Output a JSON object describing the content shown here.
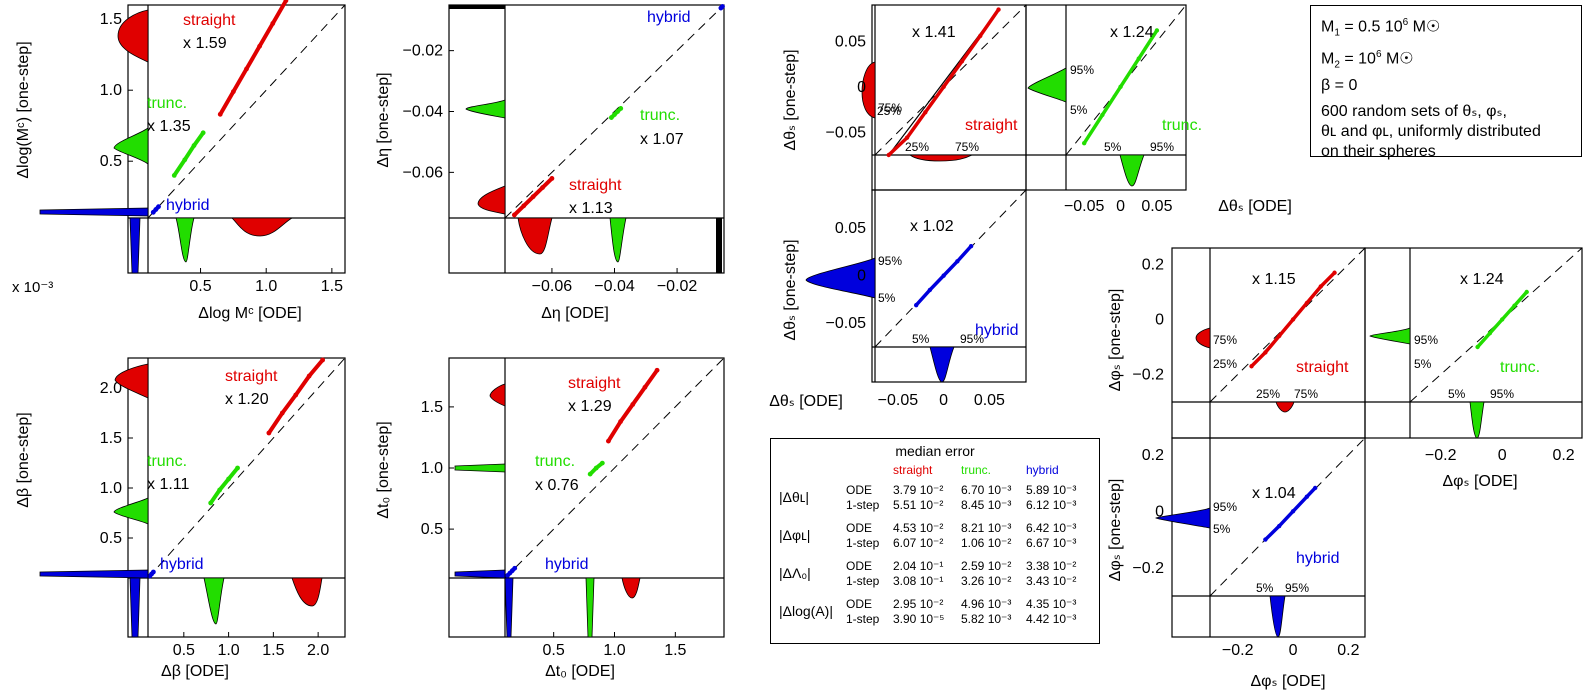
{
  "chart_data": [
    {
      "type": "scatter",
      "id": "logMc",
      "xlabel": "Δlog Mᶜ [ODE]",
      "ylabel": "Δlog(Mᶜ) [one-step]",
      "x_scale_note": "x 10⁻³",
      "xlim": [
        0.1,
        1.6
      ],
      "ylim": [
        0.1,
        1.6
      ],
      "xticks": [
        "0.5",
        "1.0",
        "1.5"
      ],
      "yticks": [
        "0.5",
        "1.0",
        "1.5"
      ],
      "series": [
        {
          "name": "straight",
          "color": "#e00000",
          "factor": "x 1.59",
          "x": [
            0.65,
            0.75,
            0.85,
            0.95,
            1.05,
            1.15
          ],
          "y": [
            0.83,
            0.99,
            1.15,
            1.31,
            1.47,
            1.63
          ]
        },
        {
          "name": "trunc.",
          "color": "#22dd00",
          "factor": "x 1.35",
          "x": [
            0.3,
            0.38,
            0.45,
            0.52
          ],
          "y": [
            0.4,
            0.51,
            0.61,
            0.7
          ]
        },
        {
          "name": "hybrid",
          "color": "#0000dd",
          "factor": "",
          "x": [
            0.14,
            0.16,
            0.18
          ],
          "y": [
            0.14,
            0.16,
            0.18
          ]
        }
      ]
    },
    {
      "type": "scatter",
      "id": "eta",
      "xlabel": "Δη [ODE]",
      "ylabel": "Δη [one-step]",
      "xlim": [
        -0.075,
        -0.005
      ],
      "ylim": [
        -0.075,
        -0.005
      ],
      "xticks": [
        "-0.06",
        "-0.04",
        "-0.02"
      ],
      "yticks": [
        "-0.06",
        "-0.04",
        "-0.02"
      ],
      "series": [
        {
          "name": "straight",
          "color": "#e00000",
          "factor": "x 1.13",
          "x": [
            -0.072,
            -0.069,
            -0.066,
            -0.063,
            -0.06
          ],
          "y": [
            -0.074,
            -0.071,
            -0.068,
            -0.065,
            -0.062
          ]
        },
        {
          "name": "trunc.",
          "color": "#22dd00",
          "factor": "x 1.07",
          "x": [
            -0.041,
            -0.04,
            -0.039,
            -0.038
          ],
          "y": [
            -0.042,
            -0.041,
            -0.04,
            -0.039
          ]
        },
        {
          "name": "hybrid",
          "color": "#0000dd",
          "factor": "",
          "x": [
            -0.006,
            -0.0055
          ],
          "y": [
            -0.006,
            -0.0055
          ]
        }
      ]
    },
    {
      "type": "scatter",
      "id": "beta",
      "xlabel": "Δβ [ODE]",
      "ylabel": "Δβ [one-step]",
      "xlim": [
        0.1,
        2.3
      ],
      "ylim": [
        0.1,
        2.3
      ],
      "xticks": [
        "0.5",
        "1.0",
        "1.5",
        "2.0"
      ],
      "yticks": [
        "0.5",
        "1.0",
        "1.5",
        "2.0"
      ],
      "series": [
        {
          "name": "straight",
          "color": "#e00000",
          "factor": "x 1.20",
          "x": [
            1.45,
            1.6,
            1.75,
            1.9,
            2.05
          ],
          "y": [
            1.55,
            1.75,
            1.93,
            2.12,
            2.28
          ]
        },
        {
          "name": "trunc.",
          "color": "#22dd00",
          "factor": "x 1.11",
          "x": [
            0.8,
            0.9,
            1.0,
            1.1
          ],
          "y": [
            0.85,
            0.98,
            1.09,
            1.2
          ]
        },
        {
          "name": "hybrid",
          "color": "#0000dd",
          "factor": "",
          "x": [
            0.12,
            0.14,
            0.16
          ],
          "y": [
            0.12,
            0.14,
            0.16
          ]
        }
      ]
    },
    {
      "type": "scatter",
      "id": "t0",
      "xlabel": "Δt₀ [ODE]",
      "ylabel": "Δt₀ [one-step]",
      "xlim": [
        0.1,
        1.9
      ],
      "ylim": [
        0.1,
        1.9
      ],
      "xticks": [
        "0.5",
        "1.0",
        "1.5"
      ],
      "yticks": [
        "0.5",
        "1.0",
        "1.5"
      ],
      "series": [
        {
          "name": "straight",
          "color": "#e00000",
          "factor": "x 1.29",
          "x": [
            0.95,
            1.05,
            1.15,
            1.25,
            1.35
          ],
          "y": [
            1.22,
            1.38,
            1.52,
            1.66,
            1.8
          ]
        },
        {
          "name": "trunc.",
          "color": "#22dd00",
          "factor": "x 0.76",
          "x": [
            0.8,
            0.85,
            0.9
          ],
          "y": [
            0.95,
            1.0,
            1.04
          ]
        },
        {
          "name": "hybrid",
          "color": "#0000dd",
          "factor": "",
          "x": [
            0.12,
            0.14,
            0.16,
            0.18
          ],
          "y": [
            0.12,
            0.14,
            0.16,
            0.18
          ]
        }
      ]
    },
    {
      "type": "scatter",
      "id": "thetaS",
      "xlabel": "Δθₛ [ODE]",
      "ylabel": "Δθₛ [one-step]",
      "xlim": [
        -0.075,
        0.09
      ],
      "ylim": [
        -0.075,
        0.09
      ],
      "xticks": [
        "-0.05",
        "0",
        "0.05"
      ],
      "yticks": [
        "-0.05",
        "0",
        "0.05"
      ],
      "series": [
        {
          "name": "straight",
          "color": "#e00000",
          "factor": "x 1.41",
          "x": [
            -0.06,
            -0.04,
            -0.02,
            0.0,
            0.02,
            0.04,
            0.06
          ],
          "y": [
            -0.085,
            -0.056,
            -0.028,
            0.0,
            0.028,
            0.056,
            0.085
          ]
        },
        {
          "name": "trunc.",
          "color": "#22dd00",
          "factor": "x 1.24",
          "x": [
            -0.05,
            -0.025,
            0.0,
            0.025,
            0.05
          ],
          "y": [
            -0.062,
            -0.031,
            0.0,
            0.031,
            0.062
          ]
        },
        {
          "name": "hybrid",
          "color": "#0000dd",
          "factor": "x 1.02",
          "x": [
            -0.03,
            -0.015,
            0.0,
            0.015,
            0.03
          ],
          "y": [
            -0.031,
            -0.015,
            0.0,
            0.015,
            0.031
          ]
        }
      ]
    },
    {
      "type": "scatter",
      "id": "phiS",
      "xlabel": "Δφₛ [ODE]",
      "ylabel": "Δφₛ [one-step]",
      "xlim": [
        -0.3,
        0.26
      ],
      "ylim": [
        -0.3,
        0.26
      ],
      "xticks": [
        "-0.2",
        "0",
        "0.2"
      ],
      "yticks": [
        "-0.2",
        "0",
        "0.2"
      ],
      "series": [
        {
          "name": "straight",
          "color": "#e00000",
          "factor": "x 1.15",
          "x": [
            -0.15,
            -0.1,
            -0.05,
            0.0,
            0.05,
            0.1,
            0.15
          ],
          "y": [
            -0.17,
            -0.12,
            -0.06,
            0.0,
            0.06,
            0.12,
            0.17
          ]
        },
        {
          "name": "trunc.",
          "color": "#22dd00",
          "factor": "x 1.24",
          "x": [
            -0.08,
            -0.04,
            0.0,
            0.04,
            0.08
          ],
          "y": [
            -0.1,
            -0.05,
            0.0,
            0.05,
            0.1
          ]
        },
        {
          "name": "hybrid",
          "color": "#0000dd",
          "factor": "x 1.04",
          "x": [
            -0.1,
            -0.05,
            0.0,
            0.05,
            0.08
          ],
          "y": [
            -0.1,
            -0.052,
            0.0,
            0.052,
            0.083
          ]
        }
      ]
    }
  ],
  "percentiles": {
    "p25": "25%",
    "p75": "75%",
    "p5": "5%",
    "p95": "95%"
  },
  "params": {
    "m1_val": "= 0.5 10",
    "m1_exp": "6",
    "m2_val": "= 10",
    "m2_exp": "6",
    "msun": "M☉",
    "beta": "β = 0",
    "desc1": "600 random sets of θₛ, φₛ,",
    "desc2": "θʟ and φʟ, uniformly distributed",
    "desc3": "on their spheres"
  },
  "median_table": {
    "title": "median error",
    "columns": [
      "straight",
      "trunc.",
      "hybrid"
    ],
    "column_colors": [
      "#e00000",
      "#22dd00",
      "#0000dd"
    ],
    "row_labels": [
      "ODE",
      "1-step"
    ],
    "rows": [
      {
        "quantity": "|Δθʟ|",
        "ode": [
          "3.79 10⁻²",
          "6.70 10⁻³",
          "5.89 10⁻³"
        ],
        "onestep": [
          "5.51 10⁻²",
          "8.45 10⁻³",
          "6.12 10⁻³"
        ]
      },
      {
        "quantity": "|Δφʟ|",
        "ode": [
          "4.53 10⁻²",
          "8.21 10⁻³",
          "6.42 10⁻³"
        ],
        "onestep": [
          "6.07 10⁻²",
          "1.06 10⁻²",
          "6.67 10⁻³"
        ]
      },
      {
        "quantity": "|ΔΛ₀|",
        "ode": [
          "2.04 10⁻¹",
          "2.59 10⁻²",
          "3.38 10⁻²"
        ],
        "onestep": [
          "3.08 10⁻¹",
          "3.26 10⁻²",
          "3.43 10⁻²"
        ]
      },
      {
        "quantity": "|Δlog(A)|",
        "ode": [
          "2.95 10⁻²",
          "4.96 10⁻³",
          "4.35 10⁻³"
        ],
        "onestep": [
          "3.90 10⁻⁵",
          "5.82 10⁻³",
          "4.42 10⁻³"
        ]
      }
    ]
  }
}
